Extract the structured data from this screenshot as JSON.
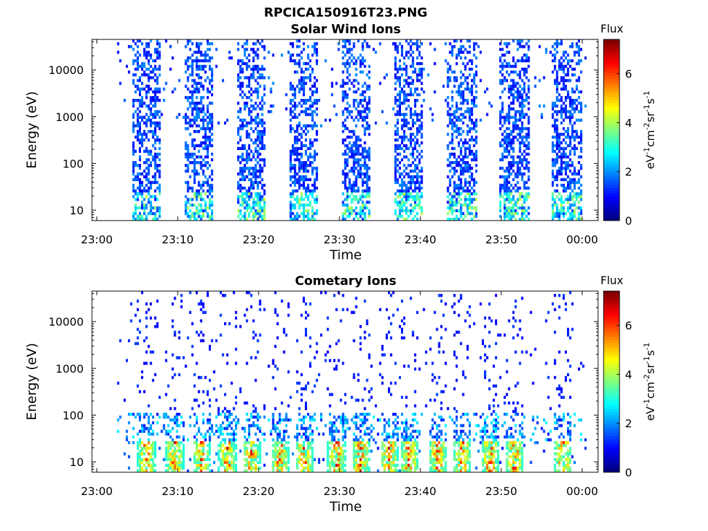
{
  "figure_title": "RPCICA150916T23.PNG",
  "chart_data": [
    {
      "type": "heatmap",
      "title": "Solar Wind Ions",
      "xlabel": "Time",
      "ylabel": "Energy (eV)",
      "x_ticks": [
        "23:00",
        "23:10",
        "23:20",
        "23:30",
        "23:40",
        "23:50",
        "00:00"
      ],
      "x_range_minutes": [
        0,
        62
      ],
      "y_ticks": [
        "10",
        "100",
        "1000",
        "10000"
      ],
      "y_scale": "log",
      "y_range": [
        6,
        45000
      ],
      "colorbar": {
        "label": "Flux",
        "unit": "eV-1cm-2sr-1s-1",
        "ticks": [
          "0",
          "2",
          "4",
          "6"
        ],
        "range": [
          0,
          7.4
        ],
        "colormap": "jet"
      },
      "burst_centers_minutes": [
        6,
        12.5,
        19,
        25.5,
        32,
        38.5,
        45,
        51.5,
        58
      ],
      "description_peak_flux": 4.5
    },
    {
      "type": "heatmap",
      "title": "Cometary Ions",
      "xlabel": "Time",
      "ylabel": "Energy (eV)",
      "x_ticks": [
        "23:00",
        "23:10",
        "23:20",
        "23:30",
        "23:40",
        "23:50",
        "00:00"
      ],
      "x_range_minutes": [
        0,
        62
      ],
      "y_ticks": [
        "10",
        "100",
        "1000",
        "10000"
      ],
      "y_scale": "log",
      "y_range": [
        6,
        45000
      ],
      "colorbar": {
        "label": "Flux",
        "unit": "eV-1cm-2sr-1s-1",
        "ticks": [
          "0",
          "2",
          "4",
          "6"
        ],
        "range": [
          0,
          7.4
        ],
        "colormap": "jet"
      },
      "burst_centers_minutes": [
        6,
        9.5,
        12.8,
        16,
        19,
        22.5,
        25.5,
        29.5,
        32.5,
        36,
        38.5,
        42,
        45,
        48.5,
        51.5,
        57.5
      ],
      "description_peak_flux": 7.0
    }
  ]
}
